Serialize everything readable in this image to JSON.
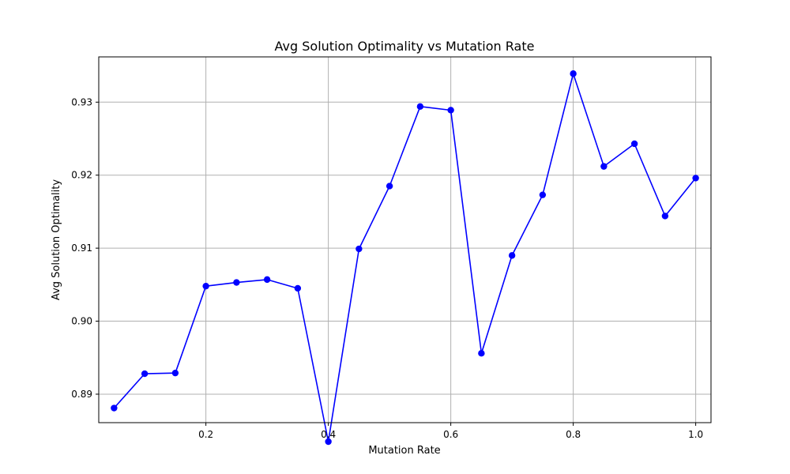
{
  "chart_data": {
    "type": "line",
    "title": "Avg Solution Optimality vs Mutation Rate",
    "xlabel": "Mutation Rate",
    "ylabel": "Avg Solution Optimality",
    "xlim": [
      0.025,
      1.025
    ],
    "ylim": [
      0.8861,
      0.9362
    ],
    "x_ticks": [
      0.2,
      0.4,
      0.6,
      0.8,
      1.0
    ],
    "x_tick_labels": [
      "0.2",
      "0.4",
      "0.6",
      "0.8",
      "1.0"
    ],
    "y_ticks": [
      0.89,
      0.9,
      0.91,
      0.92,
      0.93
    ],
    "y_tick_labels": [
      "0.89",
      "0.90",
      "0.91",
      "0.92",
      "0.93"
    ],
    "grid": true,
    "marker": "circle",
    "line_color": "#0000ff",
    "x": [
      0.05,
      0.1,
      0.15,
      0.2,
      0.25,
      0.3,
      0.35,
      0.4,
      0.45,
      0.5,
      0.55,
      0.6,
      0.65,
      0.7,
      0.75,
      0.8,
      0.85,
      0.9,
      0.95,
      1.0
    ],
    "values": [
      0.8881,
      0.8928,
      0.8929,
      0.9048,
      0.9053,
      0.9057,
      0.9045,
      0.8835,
      0.9099,
      0.9185,
      0.9294,
      0.9289,
      0.8956,
      0.909,
      0.9173,
      0.9339,
      0.9212,
      0.9243,
      0.9144,
      0.9196
    ]
  }
}
